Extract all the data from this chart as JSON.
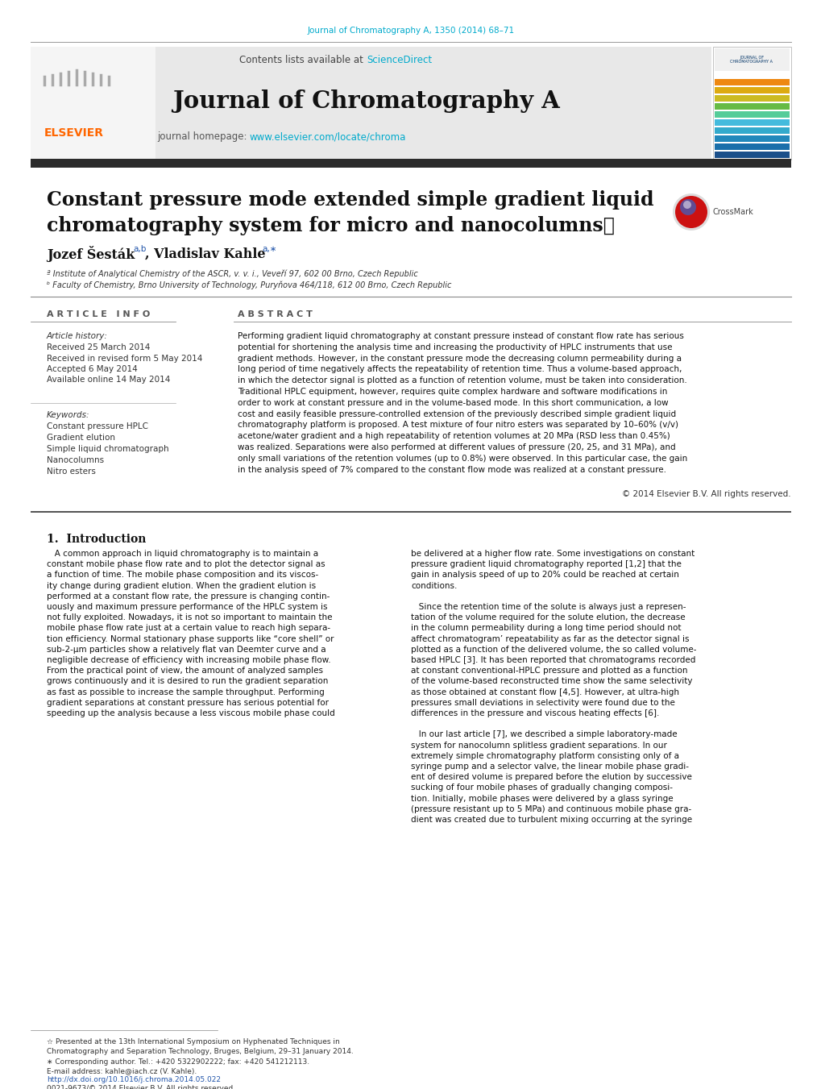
{
  "page_bg": "#ffffff",
  "top_journal_ref": "Journal of Chromatography A, 1350 (2014) 68–71",
  "top_journal_ref_color": "#00aacc",
  "header_bg": "#e8e8e8",
  "header_contents": "Contents lists available at",
  "header_sciencedirect": "ScienceDirect",
  "header_sciencedirect_color": "#00aacc",
  "journal_title": "Journal of Chromatography A",
  "journal_homepage_label": "journal homepage:",
  "journal_homepage_url": "www.elsevier.com/locate/chroma",
  "journal_homepage_url_color": "#00aacc",
  "dark_bar_color": "#2b2b2b",
  "article_title_line1": "Constant pressure mode extended simple gradient liquid",
  "article_title_line2": "chromatography system for micro and nanocolumns⋆",
  "authors_line": "Jozef Šesták",
  "authors_super1": "a,b",
  "authors2": ", Vladislav Kahle",
  "authors_super2": "a,∗",
  "affil_a": "ª Institute of Analytical Chemistry of the ASCR, v. v. i., Veveří 97, 602 00 Brno, Czech Republic",
  "affil_b": "ᵇ Faculty of Chemistry, Brno University of Technology, Puryňova 464/118, 612 00 Brno, Czech Republic",
  "section_article_info": "A R T I C L E   I N F O",
  "section_abstract": "A B S T R A C T",
  "article_history_label": "Article history:",
  "received_1": "Received 25 March 2014",
  "received_2": "Received in revised form 5 May 2014",
  "accepted": "Accepted 6 May 2014",
  "available": "Available online 14 May 2014",
  "keywords_label": "Keywords:",
  "keyword1": "Constant pressure HPLC",
  "keyword2": "Gradient elution",
  "keyword3": "Simple liquid chromatograph",
  "keyword4": "Nanocolumns",
  "keyword5": "Nitro esters",
  "abstract_text": "Performing gradient liquid chromatography at constant pressure instead of constant flow rate has serious\npotential for shortening the analysis time and increasing the productivity of HPLC instruments that use\ngradient methods. However, in the constant pressure mode the decreasing column permeability during a\nlong period of time negatively affects the repeatability of retention time. Thus a volume-based approach,\nin which the detector signal is plotted as a function of retention volume, must be taken into consideration.\nTraditional HPLC equipment, however, requires quite complex hardware and software modifications in\norder to work at constant pressure and in the volume-based mode. In this short communication, a low\ncost and easily feasible pressure-controlled extension of the previously described simple gradient liquid\nchromatography platform is proposed. A test mixture of four nitro esters was separated by 10–60% (v/v)\nacetone/water gradient and a high repeatability of retention volumes at 20 MPa (RSD less than 0.45%)\nwas realized. Separations were also performed at different values of pressure (20, 25, and 31 MPa), and\nonly small variations of the retention volumes (up to 0.8%) were observed. In this particular case, the gain\nin the analysis speed of 7% compared to the constant flow mode was realized at a constant pressure.",
  "copyright": "© 2014 Elsevier B.V. All rights reserved.",
  "intro_heading": "1.  Introduction",
  "intro_col1": [
    "   A common approach in liquid chromatography is to maintain a",
    "constant mobile phase flow rate and to plot the detector signal as",
    "a function of time. The mobile phase composition and its viscos-",
    "ity change during gradient elution. When the gradient elution is",
    "performed at a constant flow rate, the pressure is changing contin-",
    "uously and maximum pressure performance of the HPLC system is",
    "not fully exploited. Nowadays, it is not so important to maintain the",
    "mobile phase flow rate just at a certain value to reach high separa-",
    "tion efficiency. Normal stationary phase supports like “core shell” or",
    "sub-2-μm particles show a relatively flat van Deemter curve and a",
    "negligible decrease of efficiency with increasing mobile phase flow.",
    "From the practical point of view, the amount of analyzed samples",
    "grows continuously and it is desired to run the gradient separation",
    "as fast as possible to increase the sample throughput. Performing",
    "gradient separations at constant pressure has serious potential for",
    "speeding up the analysis because a less viscous mobile phase could"
  ],
  "intro_col2": [
    "be delivered at a higher flow rate. Some investigations on constant",
    "pressure gradient liquid chromatography reported [1,2] that the",
    "gain in analysis speed of up to 20% could be reached at certain",
    "conditions.",
    "",
    "   Since the retention time of the solute is always just a represen-",
    "tation of the volume required for the solute elution, the decrease",
    "in the column permeability during a long time period should not",
    "affect chromatogram’ repeatability as far as the detector signal is",
    "plotted as a function of the delivered volume, the so called volume-",
    "based HPLC [3]. It has been reported that chromatograms recorded",
    "at constant conventional-HPLC pressure and plotted as a function",
    "of the volume-based reconstructed time show the same selectivity",
    "as those obtained at constant flow [4,5]. However, at ultra-high",
    "pressures small deviations in selectivity were found due to the",
    "differences in the pressure and viscous heating effects [6].",
    "",
    "   In our last article [7], we described a simple laboratory-made",
    "system for nanocolumn splitless gradient separations. In our",
    "extremely simple chromatography platform consisting only of a",
    "syringe pump and a selector valve, the linear mobile phase gradi-",
    "ent of desired volume is prepared before the elution by successive",
    "sucking of four mobile phases of gradually changing composi-",
    "tion. Initially, mobile phases were delivered by a glass syringe",
    "(pressure resistant up to 5 MPa) and continuous mobile phase gra-",
    "dient was created due to turbulent mixing occurring at the syringe"
  ],
  "footer_note1": "☆ Presented at the 13th International Symposium on Hyphenated Techniques in",
  "footer_note2": "Chromatography and Separation Technology, Bruges, Belgium, 29–31 January 2014.",
  "footer_corresponding": "∗ Corresponding author. Tel.: +420 5322902222; fax: +420 541212113.",
  "footer_email": "E-mail address: kahle@iach.cz (V. Kahle).",
  "footer_doi": "http://dx.doi.org/10.1016/j.chroma.2014.05.022",
  "footer_issn": "0021-9673/© 2014 Elsevier B.V. All rights reserved.",
  "stripe_colors": [
    "#1a4f8a",
    "#1a6faa",
    "#2288bb",
    "#33aacc",
    "#44bbdd",
    "#55cc99",
    "#66bb44",
    "#ccbb22",
    "#ddaa11",
    "#ee8811"
  ]
}
